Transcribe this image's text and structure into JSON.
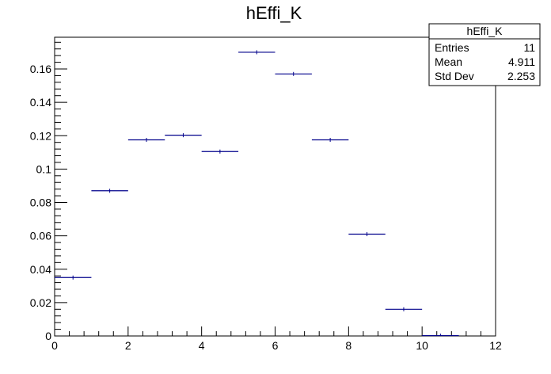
{
  "chart_data": {
    "type": "histogram",
    "title": "hEffi_K",
    "xlabel": "",
    "ylabel": "",
    "xlim": [
      0,
      12
    ],
    "ylim": [
      0,
      0.179
    ],
    "x_ticks": [
      0,
      2,
      4,
      6,
      8,
      10,
      12
    ],
    "x_tick_labels": [
      "0",
      "2",
      "4",
      "6",
      "8",
      "10",
      "12"
    ],
    "y_ticks": [
      0,
      0.02,
      0.04,
      0.06,
      0.08,
      0.1,
      0.12,
      0.14,
      0.16
    ],
    "y_tick_labels": [
      "0",
      "0.02",
      "0.04",
      "0.06",
      "0.08",
      "0.1",
      "0.12",
      "0.14",
      "0.16"
    ],
    "bins": [
      {
        "low": 0,
        "high": 1,
        "value": 0.035
      },
      {
        "low": 1,
        "high": 2,
        "value": 0.087
      },
      {
        "low": 2,
        "high": 3,
        "value": 0.1175
      },
      {
        "low": 3,
        "high": 4,
        "value": 0.1203
      },
      {
        "low": 4,
        "high": 5,
        "value": 0.1105
      },
      {
        "low": 5,
        "high": 6,
        "value": 0.17
      },
      {
        "low": 6,
        "high": 7,
        "value": 0.157
      },
      {
        "low": 7,
        "high": 8,
        "value": 0.1175
      },
      {
        "low": 8,
        "high": 9,
        "value": 0.061
      },
      {
        "low": 9,
        "high": 10,
        "value": 0.016
      },
      {
        "low": 10,
        "high": 11,
        "value": 0.0002
      }
    ],
    "error_bar": 0.0012,
    "marker_color": "#00008b",
    "stats_box": {
      "title": "hEffi_K",
      "rows": [
        {
          "label": "Entries",
          "value": "11"
        },
        {
          "label": "Mean",
          "value": "4.911"
        },
        {
          "label": "Std Dev",
          "value": "2.253"
        }
      ]
    }
  }
}
